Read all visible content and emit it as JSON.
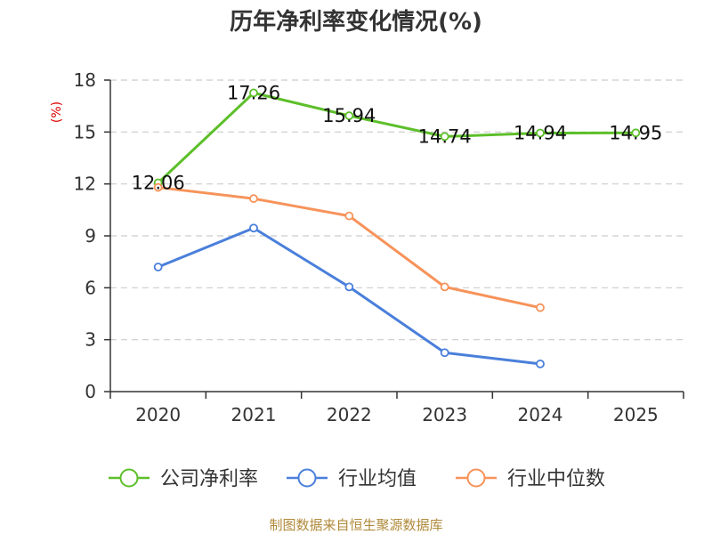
{
  "chart_data": {
    "type": "line",
    "title": "历年净利率变化情况(%)",
    "ylabel": "(%)",
    "categories": [
      "2020",
      "2021",
      "2022",
      "2023",
      "2024",
      "2025"
    ],
    "ylim": [
      0,
      18
    ],
    "yticks": [
      0,
      3,
      6,
      9,
      12,
      15,
      18
    ],
    "grid": true,
    "legend_position": "bottom",
    "series": [
      {
        "name": "公司净利率",
        "color": "#5dbf2a",
        "values": [
          12.06,
          17.26,
          15.94,
          14.74,
          14.94,
          14.95
        ],
        "labels": [
          "12.06",
          "17.26",
          "15.94",
          "14.74",
          "14.94",
          "14.95"
        ]
      },
      {
        "name": "行业均值",
        "color": "#4a7fdb",
        "values": [
          7.2,
          9.45,
          6.05,
          2.25,
          1.6,
          null
        ]
      },
      {
        "name": "行业中位数",
        "color": "#f7935a",
        "values": [
          11.8,
          11.15,
          10.15,
          6.05,
          4.85,
          null
        ]
      }
    ]
  },
  "footer": "制图数据来自恒生聚源数据库"
}
